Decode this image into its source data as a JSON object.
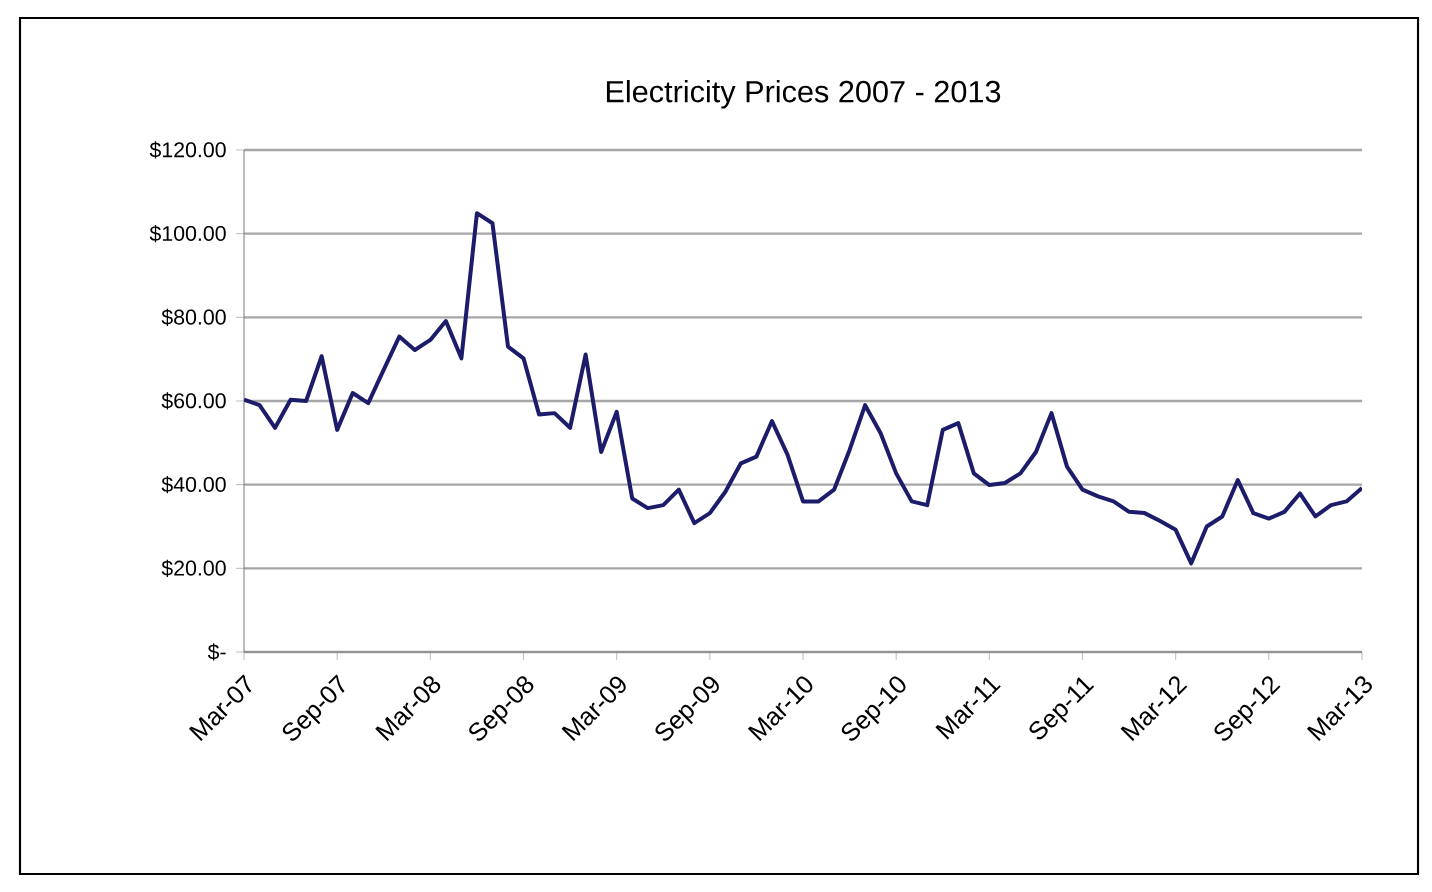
{
  "chart_data": {
    "type": "line",
    "title": "Electricity Prices 2007 - 2013",
    "categories": [
      "Mar-07",
      null,
      null,
      null,
      null,
      null,
      "Sep-07",
      null,
      null,
      null,
      null,
      null,
      "Mar-08",
      null,
      null,
      null,
      null,
      null,
      "Sep-08",
      null,
      null,
      null,
      null,
      null,
      "Mar-09",
      null,
      null,
      null,
      null,
      null,
      "Sep-09",
      null,
      null,
      null,
      null,
      null,
      "Mar-10",
      null,
      null,
      null,
      null,
      null,
      "Sep-10",
      null,
      null,
      null,
      null,
      null,
      "Mar-11",
      null,
      null,
      null,
      null,
      null,
      "Sep-11",
      null,
      null,
      null,
      null,
      null,
      "Mar-12",
      null,
      null,
      null,
      null,
      null,
      "Sep-12",
      null,
      null,
      null,
      null,
      null,
      "Mar-13"
    ],
    "values": [
      60.3,
      59.0,
      53.6,
      60.3,
      60.0,
      70.7,
      53.1,
      61.9,
      59.5,
      67.5,
      75.4,
      72.2,
      74.6,
      79.1,
      70.2,
      104.9,
      102.5,
      73.0,
      70.2,
      56.8,
      57.1,
      53.6,
      71.1,
      47.8,
      57.4,
      36.7,
      34.4,
      35.1,
      38.8,
      30.8,
      33.2,
      38.3,
      45.1,
      46.7,
      55.2,
      47.2,
      36.0,
      36.0,
      38.8,
      48.3,
      59.0,
      52.3,
      42.7,
      36.0,
      35.1,
      53.1,
      54.7,
      42.7,
      39.9,
      40.4,
      42.7,
      47.8,
      57.1,
      44.3,
      38.8,
      37.2,
      36.0,
      33.5,
      33.2,
      31.3,
      29.2,
      21.2,
      30.0,
      32.4,
      41.1,
      33.2,
      31.9,
      33.5,
      37.9,
      32.4,
      35.1,
      36.0,
      39.2
    ],
    "color": "#1c1c6b",
    "ylim": [
      0,
      120
    ],
    "yticks": [
      {
        "value": 0,
        "label": "$-"
      },
      {
        "value": 20,
        "label": "$20.00"
      },
      {
        "value": 40,
        "label": "$40.00"
      },
      {
        "value": 60,
        "label": "$60.00"
      },
      {
        "value": 80,
        "label": "$80.00"
      },
      {
        "value": 100,
        "label": "$100.00"
      },
      {
        "value": 120,
        "label": "$120.00"
      }
    ],
    "grid": "y",
    "marker": "none",
    "line_style": "solid"
  }
}
